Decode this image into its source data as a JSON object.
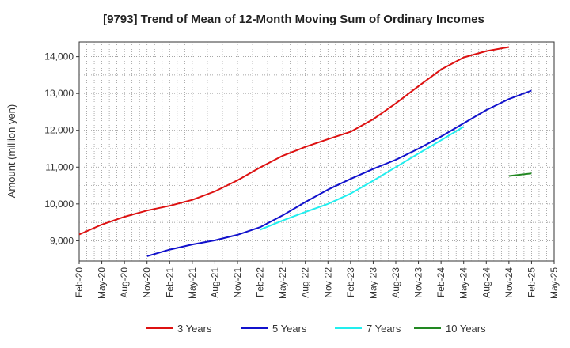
{
  "chart_data": {
    "type": "line",
    "title": "[9793]  Trend of Mean of 12-Month Moving Sum of Ordinary Incomes",
    "xlabel": "",
    "ylabel": "Amount (million yen)",
    "ylim": [
      8450,
      14400
    ],
    "yticks": [
      9000,
      10000,
      11000,
      12000,
      13000,
      14000
    ],
    "ytick_labels": [
      "9,000",
      "10,000",
      "11,000",
      "12,000",
      "13,000",
      "14,000"
    ],
    "xticks": [
      "Feb-20",
      "May-20",
      "Aug-20",
      "Nov-20",
      "Feb-21",
      "May-21",
      "Aug-21",
      "Nov-21",
      "Feb-22",
      "May-22",
      "Aug-22",
      "Nov-22",
      "Feb-23",
      "May-23",
      "Aug-23",
      "Nov-23",
      "Feb-24",
      "May-24",
      "Aug-24",
      "Nov-24",
      "Feb-25",
      "May-25"
    ],
    "grid": true,
    "legend_position": "bottom",
    "series": [
      {
        "name": "3 Years",
        "color": "#dd1111",
        "points": [
          [
            0,
            9170
          ],
          [
            1,
            9440
          ],
          [
            2,
            9650
          ],
          [
            3,
            9820
          ],
          [
            4,
            9950
          ],
          [
            5,
            10110
          ],
          [
            6,
            10340
          ],
          [
            7,
            10640
          ],
          [
            8,
            10990
          ],
          [
            9,
            11310
          ],
          [
            10,
            11550
          ],
          [
            11,
            11760
          ],
          [
            12,
            11960
          ],
          [
            13,
            12300
          ],
          [
            14,
            12730
          ],
          [
            15,
            13200
          ],
          [
            16,
            13650
          ],
          [
            17,
            13980
          ],
          [
            18,
            14150
          ],
          [
            19,
            14260
          ]
        ]
      },
      {
        "name": "5 Years",
        "color": "#1111cc",
        "points": [
          [
            0,
            8580
          ],
          [
            1,
            8760
          ],
          [
            2,
            8900
          ],
          [
            3,
            9010
          ],
          [
            4,
            9160
          ],
          [
            5,
            9370
          ],
          [
            6,
            9690
          ],
          [
            7,
            10050
          ],
          [
            8,
            10390
          ],
          [
            9,
            10680
          ],
          [
            10,
            10950
          ],
          [
            11,
            11200
          ],
          [
            12,
            11500
          ],
          [
            13,
            11830
          ],
          [
            14,
            12190
          ],
          [
            15,
            12550
          ],
          [
            16,
            12850
          ],
          [
            17,
            13080
          ]
        ]
      },
      {
        "name": "7 Years",
        "color": "#22eeee",
        "points": [
          [
            0,
            9300
          ],
          [
            1,
            9550
          ],
          [
            2,
            9780
          ],
          [
            3,
            10000
          ],
          [
            4,
            10280
          ],
          [
            5,
            10630
          ],
          [
            6,
            11000
          ],
          [
            7,
            11370
          ],
          [
            8,
            11730
          ],
          [
            9,
            12100
          ]
        ]
      },
      {
        "name": "10 Years",
        "color": "#228822",
        "points": [
          [
            0,
            10760
          ],
          [
            1,
            10830
          ]
        ]
      }
    ],
    "series_x_offsets_months": [
      0,
      9,
      24,
      57
    ],
    "series_point_step_months": 3,
    "series_point_step_months_short": 1
  }
}
